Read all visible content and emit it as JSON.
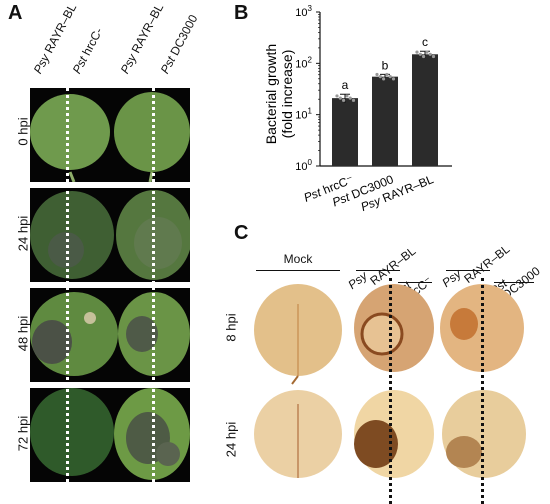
{
  "panels": {
    "a": "A",
    "b": "B",
    "c": "C"
  },
  "panel_a": {
    "column_labels": [
      {
        "species": "Psy",
        "strain": "RAYR–BL"
      },
      {
        "species": "Pst",
        "strain": "hrcC-"
      },
      {
        "species": "Psy",
        "strain": "RAYR–BL"
      },
      {
        "species": "Pst",
        "strain": "DC3000"
      }
    ],
    "row_labels": [
      "0 hpi",
      "24 hpi",
      "48 hpi",
      "72 hpi"
    ]
  },
  "panel_c": {
    "mock_label": "Mock",
    "group2_labels": {
      "top_species": "Psy",
      "top_strain": "RAYR–BL",
      "sub_species": "Pst",
      "sub_strain": "hrcC⁻"
    },
    "group3_labels": {
      "top_species": "Psy",
      "top_strain": "RAYR–BL",
      "sub_species": "Pst",
      "sub_strain": "DC3000"
    },
    "row_labels": [
      "8 hpi",
      "24 hpi"
    ]
  },
  "chart_data": {
    "type": "bar",
    "ylabel_line1": "Bacterial growth",
    "ylabel_line2": "(fold increase)",
    "yscale": "log",
    "ylim": [
      1,
      1000
    ],
    "yticks": [
      {
        "base": "10",
        "exp": "0",
        "value": 1
      },
      {
        "base": "10",
        "exp": "1",
        "value": 10
      },
      {
        "base": "10",
        "exp": "2",
        "value": 100
      },
      {
        "base": "10",
        "exp": "3",
        "value": 1000
      }
    ],
    "categories": [
      {
        "species": "Pst",
        "strain": "hrcC⁻"
      },
      {
        "species": "Pst",
        "strain": "DC3000"
      },
      {
        "species": "Psy",
        "strain": "RAYR–BL"
      }
    ],
    "values": [
      21,
      55,
      150
    ],
    "errors": [
      4,
      6,
      22
    ],
    "significance_letters": [
      "a",
      "b",
      "c"
    ],
    "bar_color": "#2b2b2b",
    "point_color": "#9a9a9a"
  }
}
